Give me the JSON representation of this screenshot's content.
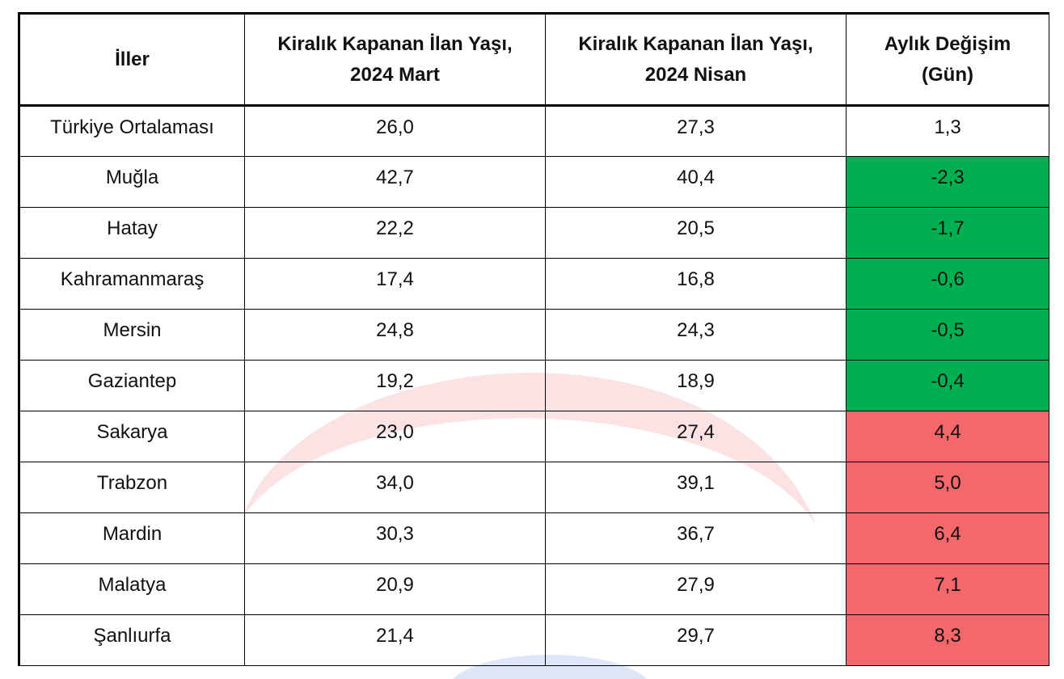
{
  "table": {
    "headers": [
      "İller",
      "Kiralık Kapanan İlan Yaşı, 2024 Mart",
      "Kiralık Kapanan İlan Yaşı, 2024 Nisan",
      "Aylık Değişim (Gün)"
    ],
    "rows": [
      {
        "cells": [
          "Türkiye Ortalaması",
          "26,0",
          "27,3",
          "1,3"
        ]
      },
      {
        "cells": [
          "Muğla",
          "42,7",
          "40,4",
          "-2,3"
        ],
        "color": "#00b050"
      },
      {
        "cells": [
          "Hatay",
          "22,2",
          "20,5",
          "-1,7"
        ],
        "color": "#00b050"
      },
      {
        "cells": [
          "Kahramanmaraş",
          "17,4",
          "16,8",
          "-0,6"
        ],
        "color": "#00b050"
      },
      {
        "cells": [
          "Mersin",
          "24,8",
          "24,3",
          "-0,5"
        ],
        "color": "#00b050"
      },
      {
        "cells": [
          "Gaziantep",
          "19,2",
          "18,9",
          "-0,4"
        ],
        "color": "#00b050"
      },
      {
        "cells": [
          "Sakarya",
          "23,0",
          "27,4",
          "4,4"
        ],
        "color": "#f4686b"
      },
      {
        "cells": [
          "Trabzon",
          "34,0",
          "39,1",
          "5,0"
        ],
        "color": "#f4686b"
      },
      {
        "cells": [
          "Mardin",
          "30,3",
          "36,7",
          "6,4"
        ],
        "color": "#f4686b"
      },
      {
        "cells": [
          "Malatya",
          "20,9",
          "27,9",
          "7,1"
        ],
        "color": "#f4686b"
      },
      {
        "cells": [
          "Şanlıurfa",
          "21,4",
          "29,7",
          "8,3"
        ],
        "color": "#f4686b"
      }
    ]
  }
}
